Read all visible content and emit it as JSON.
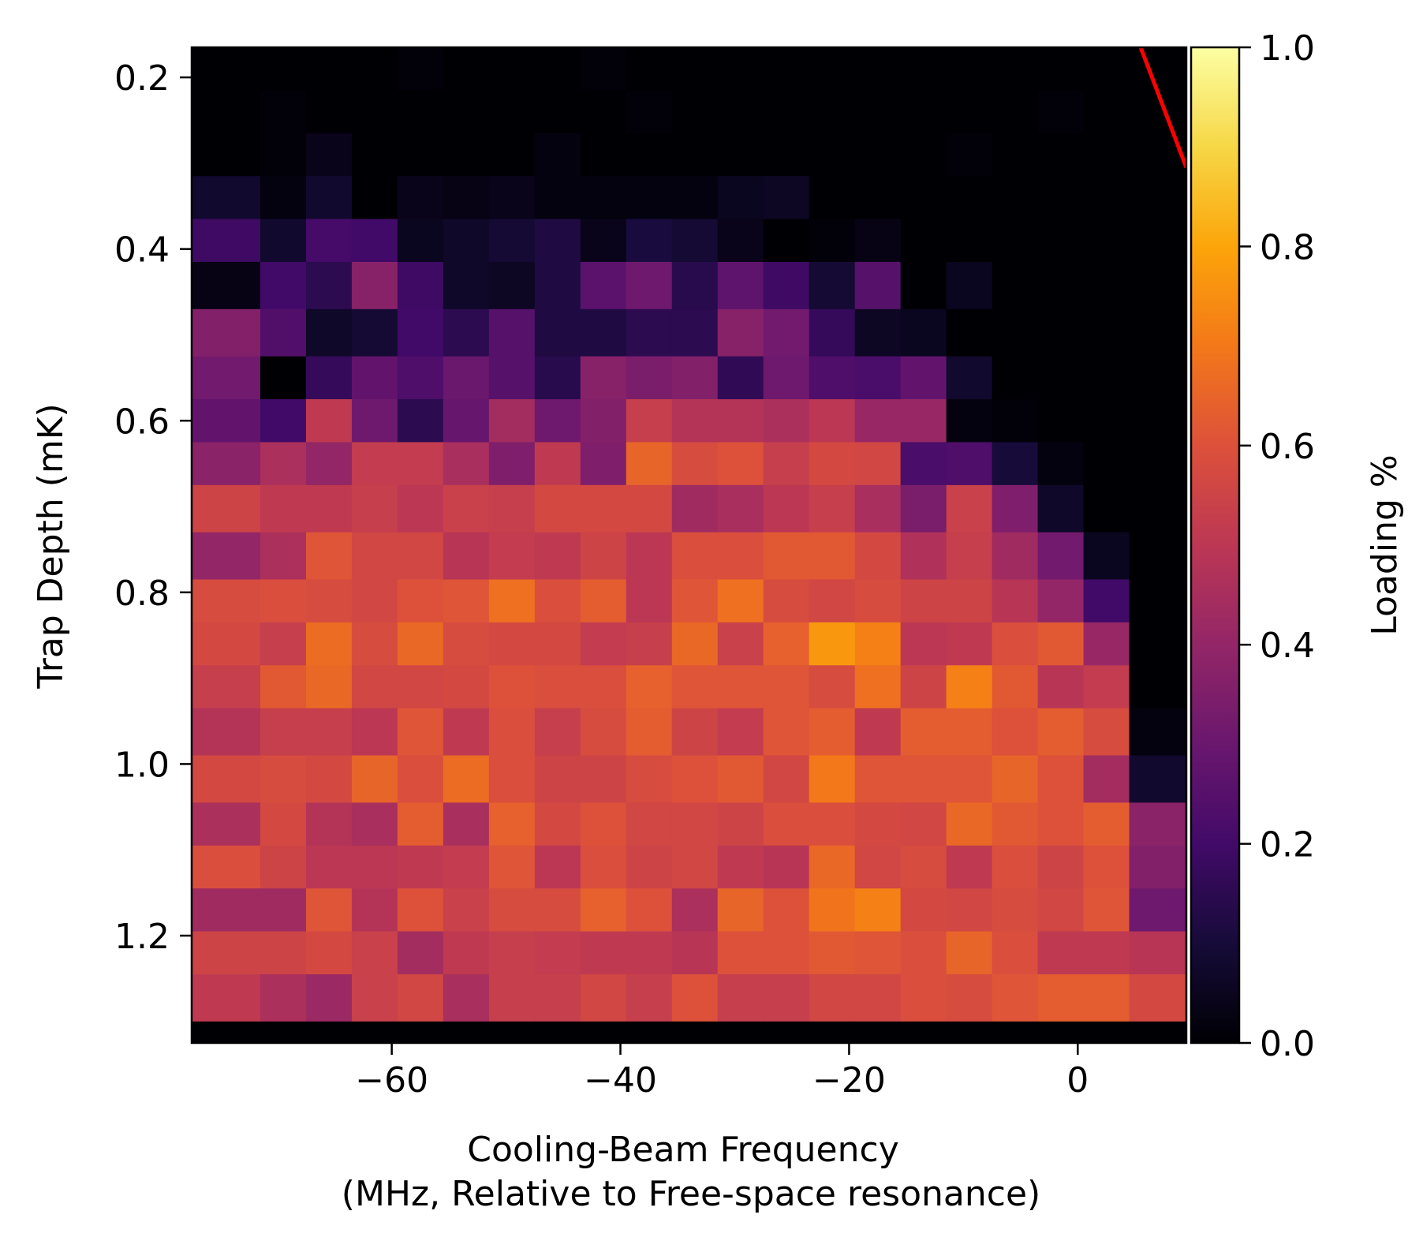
{
  "chart_data": {
    "type": "heatmap",
    "title": "",
    "xlabel_line1": "Cooling-Beam Frequency",
    "xlabel_line2": "(MHz, Relative to Free-space resonance)",
    "ylabel": "Trap Depth (mK)",
    "colorbar_label": "Loading %",
    "colormap": "inferno",
    "grid": false,
    "x_range": [
      -77.5,
      9.5
    ],
    "y_range": [
      0.165,
      1.325
    ],
    "y_inverted": true,
    "x_ticks": [
      -60,
      -40,
      -20,
      0
    ],
    "x_tick_labels": [
      "−60",
      "−40",
      "−20",
      "0"
    ],
    "y_ticks": [
      0.2,
      0.4,
      0.6,
      0.8,
      1.0,
      1.2
    ],
    "y_tick_labels": [
      "0.2",
      "0.4",
      "0.6",
      "0.8",
      "1.0",
      "1.2"
    ],
    "colorbar_range": [
      0.0,
      1.0
    ],
    "colorbar_ticks": [
      0.0,
      0.2,
      0.4,
      0.6,
      0.8,
      1.0
    ],
    "colorbar_tick_labels": [
      "0.0",
      "0.2",
      "0.4",
      "0.6",
      "0.8",
      "1.0"
    ],
    "x_centers": [
      -73.5,
      -69.5,
      -65.5,
      -61.5,
      -57.5,
      -53.5,
      -49.5,
      -45.5,
      -41.5,
      -37.5,
      -33.5,
      -29.5,
      -25.5,
      -21.5,
      -17.5,
      -13.5,
      -9.5,
      -5.5,
      -1.5,
      2.5,
      6.5
    ],
    "y_centers": [
      0.19,
      0.24,
      0.29,
      0.34,
      0.39,
      0.44,
      0.5,
      0.55,
      0.6,
      0.65,
      0.7,
      0.76,
      0.81,
      0.86,
      0.91,
      0.96,
      1.02,
      1.07,
      1.12,
      1.17,
      1.22,
      1.27,
      1.33
    ],
    "values": [
      [
        0.0,
        0.0,
        0.0,
        0.0,
        0.01,
        0.0,
        0.0,
        0.0,
        0.01,
        0.0,
        0.0,
        0.0,
        0.0,
        0.0,
        0.0,
        0.0,
        0.0,
        0.0,
        0.0,
        0.0,
        0.0
      ],
      [
        0.0,
        0.01,
        0.0,
        0.0,
        0.0,
        0.0,
        0.0,
        0.0,
        0.0,
        0.01,
        0.0,
        0.0,
        0.0,
        0.0,
        0.0,
        0.0,
        0.0,
        0.0,
        0.01,
        0.0,
        0.0
      ],
      [
        0.0,
        0.01,
        0.04,
        0.0,
        0.0,
        0.0,
        0.0,
        0.02,
        0.0,
        0.0,
        0.0,
        0.0,
        0.0,
        0.0,
        0.0,
        0.0,
        0.01,
        0.0,
        0.0,
        0.0,
        0.0
      ],
      [
        0.08,
        0.02,
        0.08,
        0.0,
        0.04,
        0.03,
        0.04,
        0.02,
        0.02,
        0.02,
        0.02,
        0.05,
        0.06,
        0.0,
        0.0,
        0.0,
        0.0,
        0.0,
        0.0,
        0.0,
        0.0
      ],
      [
        0.19,
        0.08,
        0.21,
        0.2,
        0.05,
        0.07,
        0.09,
        0.12,
        0.04,
        0.11,
        0.09,
        0.04,
        0.0,
        0.01,
        0.03,
        0.0,
        0.0,
        0.0,
        0.0,
        0.0,
        0.0
      ],
      [
        0.03,
        0.2,
        0.15,
        0.37,
        0.19,
        0.07,
        0.06,
        0.12,
        0.26,
        0.31,
        0.14,
        0.27,
        0.19,
        0.09,
        0.25,
        0.0,
        0.05,
        0.0,
        0.0,
        0.0,
        0.0
      ],
      [
        0.36,
        0.24,
        0.07,
        0.09,
        0.2,
        0.15,
        0.25,
        0.12,
        0.12,
        0.15,
        0.15,
        0.37,
        0.32,
        0.17,
        0.06,
        0.05,
        0.0,
        0.0,
        0.0,
        0.0,
        0.0
      ],
      [
        0.32,
        0.0,
        0.17,
        0.28,
        0.23,
        0.3,
        0.25,
        0.14,
        0.37,
        0.34,
        0.36,
        0.16,
        0.31,
        0.23,
        0.22,
        0.28,
        0.08,
        0.0,
        0.0,
        0.0,
        0.0
      ],
      [
        0.28,
        0.2,
        0.51,
        0.31,
        0.15,
        0.29,
        0.44,
        0.31,
        0.36,
        0.53,
        0.48,
        0.48,
        0.46,
        0.5,
        0.41,
        0.41,
        0.02,
        0.01,
        0.0,
        0.0,
        0.0
      ],
      [
        0.38,
        0.46,
        0.4,
        0.52,
        0.52,
        0.45,
        0.35,
        0.51,
        0.35,
        0.65,
        0.58,
        0.6,
        0.53,
        0.57,
        0.56,
        0.22,
        0.23,
        0.1,
        0.02,
        0.0,
        0.0
      ],
      [
        0.55,
        0.51,
        0.51,
        0.53,
        0.5,
        0.54,
        0.53,
        0.57,
        0.57,
        0.57,
        0.43,
        0.45,
        0.5,
        0.53,
        0.45,
        0.34,
        0.54,
        0.35,
        0.07,
        0.0,
        0.0
      ],
      [
        0.4,
        0.46,
        0.61,
        0.56,
        0.56,
        0.49,
        0.52,
        0.51,
        0.55,
        0.5,
        0.59,
        0.59,
        0.62,
        0.62,
        0.57,
        0.47,
        0.53,
        0.43,
        0.32,
        0.05,
        0.0
      ],
      [
        0.58,
        0.59,
        0.58,
        0.56,
        0.6,
        0.61,
        0.68,
        0.59,
        0.63,
        0.5,
        0.61,
        0.68,
        0.58,
        0.56,
        0.58,
        0.55,
        0.55,
        0.49,
        0.4,
        0.2,
        0.0
      ],
      [
        0.57,
        0.53,
        0.67,
        0.58,
        0.66,
        0.58,
        0.57,
        0.57,
        0.52,
        0.53,
        0.66,
        0.54,
        0.64,
        0.77,
        0.72,
        0.5,
        0.51,
        0.59,
        0.62,
        0.41,
        0.0
      ],
      [
        0.53,
        0.62,
        0.66,
        0.56,
        0.56,
        0.57,
        0.6,
        0.59,
        0.59,
        0.64,
        0.61,
        0.61,
        0.61,
        0.58,
        0.68,
        0.55,
        0.72,
        0.62,
        0.49,
        0.52,
        0.0
      ],
      [
        0.48,
        0.53,
        0.53,
        0.5,
        0.61,
        0.51,
        0.59,
        0.53,
        0.58,
        0.63,
        0.55,
        0.52,
        0.61,
        0.63,
        0.51,
        0.63,
        0.63,
        0.6,
        0.63,
        0.58,
        0.02
      ],
      [
        0.57,
        0.58,
        0.57,
        0.65,
        0.59,
        0.67,
        0.59,
        0.55,
        0.55,
        0.58,
        0.6,
        0.62,
        0.56,
        0.7,
        0.61,
        0.61,
        0.61,
        0.65,
        0.6,
        0.44,
        0.08
      ],
      [
        0.46,
        0.57,
        0.48,
        0.45,
        0.63,
        0.45,
        0.64,
        0.57,
        0.6,
        0.56,
        0.56,
        0.55,
        0.59,
        0.59,
        0.57,
        0.56,
        0.66,
        0.62,
        0.6,
        0.63,
        0.38
      ],
      [
        0.59,
        0.55,
        0.5,
        0.5,
        0.51,
        0.52,
        0.61,
        0.5,
        0.59,
        0.55,
        0.56,
        0.51,
        0.49,
        0.66,
        0.56,
        0.58,
        0.51,
        0.59,
        0.55,
        0.6,
        0.36
      ],
      [
        0.43,
        0.43,
        0.61,
        0.48,
        0.6,
        0.54,
        0.58,
        0.58,
        0.64,
        0.6,
        0.46,
        0.65,
        0.6,
        0.69,
        0.72,
        0.57,
        0.56,
        0.58,
        0.56,
        0.61,
        0.31
      ],
      [
        0.55,
        0.55,
        0.57,
        0.54,
        0.44,
        0.51,
        0.53,
        0.52,
        0.51,
        0.51,
        0.49,
        0.6,
        0.6,
        0.62,
        0.61,
        0.59,
        0.65,
        0.59,
        0.51,
        0.51,
        0.49
      ],
      [
        0.51,
        0.46,
        0.42,
        0.54,
        0.56,
        0.45,
        0.53,
        0.53,
        0.56,
        0.53,
        0.6,
        0.53,
        0.53,
        0.56,
        0.56,
        0.59,
        0.58,
        0.61,
        0.63,
        0.63,
        0.57
      ],
      [
        0.0,
        0.0,
        0.0,
        0.0,
        0.0,
        0.0,
        0.0,
        0.0,
        0.0,
        0.0,
        0.0,
        0.0,
        0.0,
        0.0,
        0.0,
        0.0,
        0.0,
        0.0,
        0.0,
        0.0,
        0.0
      ]
    ],
    "overlay_line": {
      "color": "#ff0000",
      "x": [
        5.5,
        9.5
      ],
      "y": [
        0.165,
        0.305
      ]
    }
  }
}
